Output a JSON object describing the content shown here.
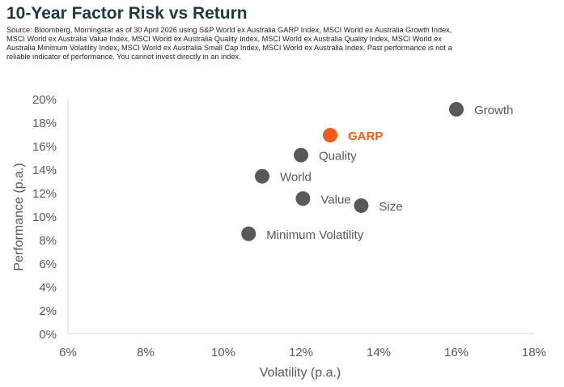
{
  "title": "10-Year Factor Risk vs Return",
  "source_note": "Source: Bloomberg, Morningstar as of 30 April 2026 using S&P World ex Australia GARP Index, MSCI World ex Australia Growth Index, MSCI World ex Australia Value Index, MSCI World ex Australia Quality Index, MSCI World ex Australia Quality Index, MSCI World ex Australia Minimum Volatility Index, MSCI World ex Australia Small Cap Index, MSCI World ex Australia Index. Past performance is not a reliable indicator of performance. You cannot invest directly in an index.",
  "colors": {
    "point": "#595959",
    "highlight": "#f25c19",
    "axis": "#d9d9d9",
    "tick_text": "#595959",
    "label_text": "#595959"
  },
  "chart_data": {
    "type": "scatter",
    "xlabel": "Volatility (p.a.)",
    "ylabel": "Performance (p.a.)",
    "xlim": [
      6,
      18
    ],
    "ylim": [
      0,
      20
    ],
    "x_ticks": [
      "6%",
      "8%",
      "10%",
      "12%",
      "14%",
      "16%",
      "18%"
    ],
    "y_ticks": [
      "0%",
      "2%",
      "4%",
      "6%",
      "8%",
      "10%",
      "12%",
      "14%",
      "16%",
      "18%",
      "20%"
    ],
    "grid": false,
    "legend": "none",
    "points": [
      {
        "label": "Growth",
        "x": 16.0,
        "y": 19.1,
        "highlight": false
      },
      {
        "label": "GARP",
        "x": 12.75,
        "y": 16.9,
        "highlight": true
      },
      {
        "label": "Quality",
        "x": 12.0,
        "y": 15.2,
        "highlight": false
      },
      {
        "label": "World",
        "x": 11.0,
        "y": 13.4,
        "highlight": false
      },
      {
        "label": "Value",
        "x": 12.05,
        "y": 11.5,
        "highlight": false
      },
      {
        "label": "Size",
        "x": 13.55,
        "y": 10.9,
        "highlight": false
      },
      {
        "label": "Minimum Volatility",
        "x": 10.65,
        "y": 8.5,
        "highlight": false
      }
    ]
  }
}
